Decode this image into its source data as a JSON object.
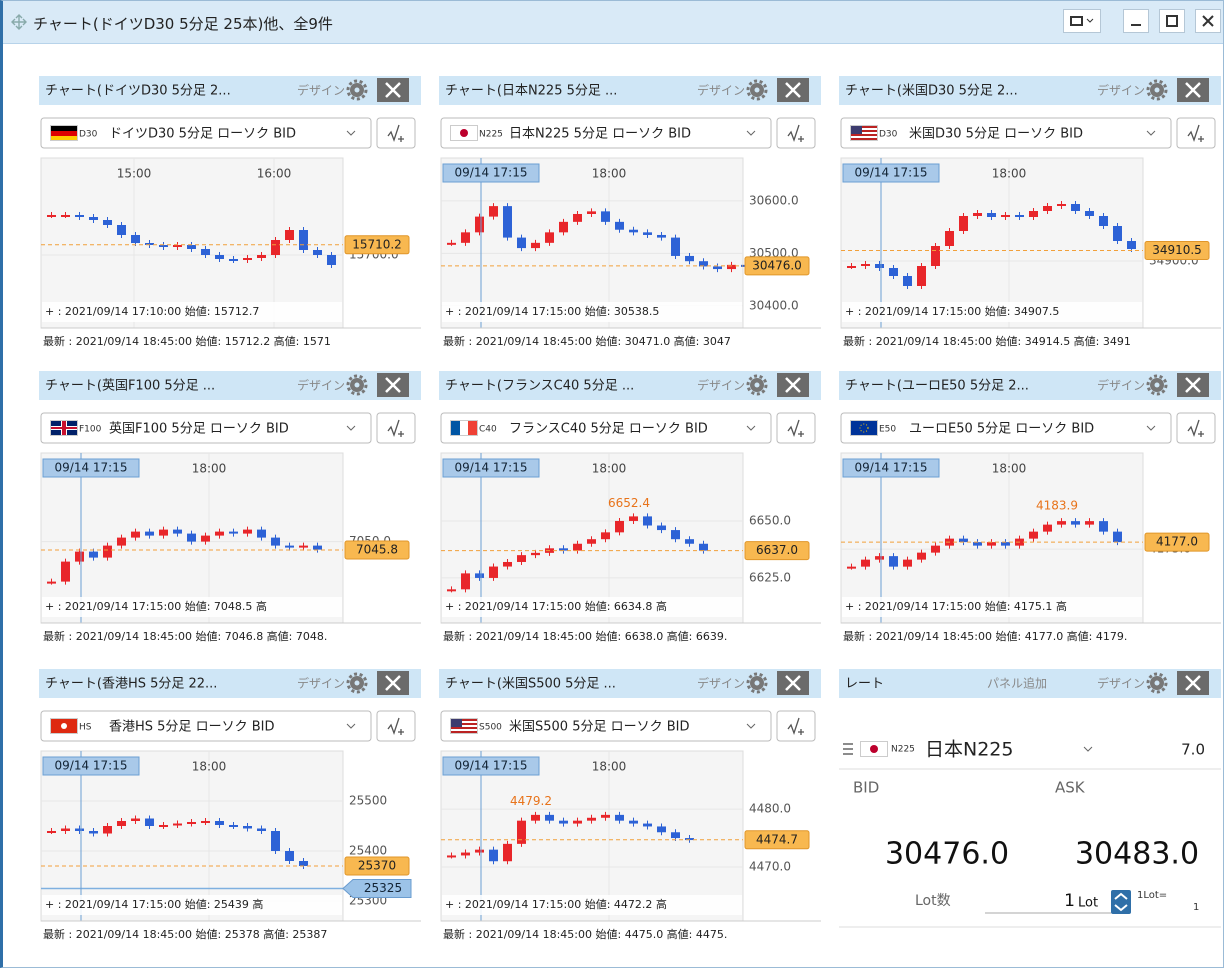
{
  "window": {
    "title": "チャート(ドイツD30 5分足 25本)他、全9件"
  },
  "design": "デザイン",
  "panels": [
    {
      "title": "チャート(ドイツD30 5分足 2...",
      "flag_code": "D30",
      "selector": "ドイツD30 5分足 ローソク BID",
      "time_labels": [
        "15:00",
        "16:00"
      ],
      "ylim": [
        15634,
        15794
      ],
      "yticks": [
        {
          "value": 15700,
          "label": "15700.0"
        }
      ],
      "current": 15710.2,
      "info": "+ : 2021/09/14 17:10:00 始値: 15712.7",
      "latest": "最新 : 2021/09/14 18:45:00 始値: 15712.2 高値: 1571",
      "closes": [
        15740,
        15740,
        15738,
        15735,
        15730,
        15720,
        15712,
        15710,
        15708,
        15710,
        15706,
        15700,
        15696,
        15695,
        15697,
        15700,
        15715,
        15725,
        15705,
        15700,
        15690
      ]
    },
    {
      "title": "チャート(日本N225 5分足 ...",
      "flag_code": "N225",
      "selector": "日本N225 5分足 ローソク BID",
      "crosshair": "09/14 17:15",
      "time_labels": [
        "18:00"
      ],
      "ylim": [
        30371,
        30676
      ],
      "yticks": [
        {
          "value": 30600,
          "label": "30600.0"
        },
        {
          "value": 30500,
          "label": "30500.0"
        },
        {
          "value": 30400,
          "label": "30400.0"
        }
      ],
      "current": {
        "value": 30476,
        "label": "30476.0"
      },
      "info": "+ : 2021/09/14 17:15:00 始値: 30538.5",
      "latest": "最新 : 2021/09/14 18:45:00 始値: 30471.0 高値: 3047",
      "closes": [
        30520,
        30540,
        30570,
        30590,
        30530,
        30510,
        30520,
        30540,
        30560,
        30575,
        30580,
        30560,
        30545,
        30540,
        30535,
        30530,
        30495,
        30485,
        30475,
        30470,
        30478,
        30476
      ]
    },
    {
      "title": "チャート(米国D30 5分足 2...",
      "flag_code": "D30",
      "selector": "米国D30 5分足 ローソク BID",
      "crosshair": "09/14 17:15",
      "time_labels": [
        "18:00"
      ],
      "ylim": [
        34840,
        35000
      ],
      "yticks": [
        {
          "value": 34900,
          "label": "34900.0"
        }
      ],
      "current": 34910.5,
      "info": "+ : 2021/09/14 17:15:00 始値: 34907.5",
      "latest": "最新 : 2021/09/14 18:45:00 始値: 34914.5 高値: 3491",
      "closes": [
        34895,
        34897,
        34893,
        34885,
        34875,
        34895,
        34915,
        34930,
        34945,
        34948,
        34944,
        34946,
        34944,
        34950,
        34955,
        34957,
        34950,
        34945,
        34935,
        34920,
        34912
      ]
    },
    {
      "title": "チャート(英国F100 5分足 ...",
      "flag_code": "F100",
      "selector": "英国F100 5分足 ローソク BID",
      "crosshair": "09/14 17:15",
      "time_labels": [
        "18:00"
      ],
      "ylim": [
        7012.8,
        7092.8
      ],
      "yticks": [
        {
          "value": 7050,
          "label": "7050.0"
        }
      ],
      "current": 7045.8,
      "info": "+ : 2021/09/14 17:15:00 始値: 7048.5 高",
      "latest": "最新 : 2021/09/14 18:45:00 始値: 7046.8 高値: 7048.",
      "closes": [
        7030,
        7040,
        7045,
        7042,
        7048,
        7052,
        7055,
        7053,
        7056,
        7054,
        7050,
        7053,
        7055,
        7054,
        7056,
        7052,
        7048,
        7047,
        7048,
        7046
      ]
    },
    {
      "title": "チャート(フランスC40 5分足 ...",
      "flag_code": "C40",
      "selector": "フランスC40 5分足 ローソク BID",
      "crosshair": "09/14 17:15",
      "time_labels": [
        "18:00"
      ],
      "ylim": [
        6608.3,
        6678.5
      ],
      "yticks": [
        {
          "value": 6650,
          "label": "6650.0"
        },
        {
          "value": 6625,
          "label": "6625.0"
        }
      ],
      "current": {
        "value": 6637,
        "label": "6637.0"
      },
      "high": 6652.4,
      "info": "+ : 2021/09/14 17:15:00 始値: 6634.8 高",
      "latest": "最新 : 2021/09/14 18:45:00 始値: 6638.0 高値: 6639.",
      "closes": [
        6620,
        6627,
        6625,
        6630,
        6632,
        6635,
        6636,
        6638,
        6637,
        6640,
        6642,
        6645,
        6650,
        6652,
        6648,
        6646,
        6642,
        6640,
        6637
      ]
    },
    {
      "title": "チャート(ユーロE50 5分足 2...",
      "flag_code": "E50",
      "selector": "ユーロE50 5分足 ローソク BID",
      "crosshair": "09/14 17:15",
      "time_labels": [
        "18:00"
      ],
      "ylim": [
        4155.9,
        4201.6
      ],
      "yticks": [
        {
          "value": 4175,
          "label": "4175.0"
        }
      ],
      "current": {
        "value": 4177,
        "label": "4177.0"
      },
      "high": 4183.9,
      "info": "+ : 2021/09/14 17:15:00 始値: 4175.1 高",
      "latest": "最新 : 2021/09/14 18:45:00 始値: 4177.0 高値: 4179.",
      "closes": [
        4170,
        4172,
        4173,
        4170,
        4172,
        4174,
        4176,
        4178,
        4177,
        4176,
        4177,
        4176,
        4178,
        4180,
        4182,
        4183,
        4182,
        4183,
        4180,
        4177
      ]
    },
    {
      "title": "チャート(香港HS 5分足 22...",
      "flag_code": "HS",
      "selector": "香港HS 5分足 ローソク BID",
      "crosshair": "09/14 17:15",
      "time_labels": [
        "18:00"
      ],
      "ylim": [
        25274,
        25594
      ],
      "yticks": [
        25500,
        25400,
        25300
      ],
      "current": 25370,
      "alert": 25325,
      "info": "+ : 2021/09/14 17:15:00 始値: 25439 高",
      "latest": "最新 : 2021/09/14 18:45:00 始値: 25378 高値: 25387",
      "closes": [
        25440,
        25445,
        25440,
        25435,
        25450,
        25460,
        25465,
        25450,
        25452,
        25455,
        25458,
        25460,
        25452,
        25450,
        25445,
        25440,
        25400,
        25380,
        25370
      ]
    },
    {
      "title": "チャート(米国S500 5分足 ...",
      "flag_code": "S500",
      "selector": "米国S500 5分足 ローソク BID",
      "crosshair": "09/14 17:15",
      "time_labels": [
        "18:00"
      ],
      "ylim": [
        4461.9,
        4489.5
      ],
      "yticks": [
        {
          "value": 4480,
          "label": "4480.0"
        },
        {
          "value": 4470,
          "label": "4470.0"
        }
      ],
      "current": 4474.7,
      "high": 4479.2,
      "info": "+ : 2021/09/14 17:15:00 始値: 4472.2 高",
      "latest": "最新 : 2021/09/14 18:45:00 始値: 4475.0 高値: 4475.",
      "closes": [
        4472,
        4472.5,
        4473,
        4471,
        4474,
        4478,
        4479,
        4478,
        4477.5,
        4478,
        4478.5,
        4479,
        4478,
        4477.5,
        4477,
        4476,
        4475,
        4474.7
      ]
    }
  ],
  "rate": {
    "title": "レート",
    "add_panel": "パネル追加",
    "symbol_code": "N225",
    "symbol": "日本N225",
    "spread": {
      "value": 7,
      "label": "7.0"
    },
    "bid_label": "BID",
    "ask_label": "ASK",
    "bid": {
      "value": 30476,
      "label": "30476.0"
    },
    "ask": {
      "value": 30483,
      "label": "30483.0"
    },
    "lot_label": "Lot数",
    "lot": 1,
    "lot_unit": "Lot",
    "lot_size_label": "1Lot=",
    "lot_size": 1
  }
}
